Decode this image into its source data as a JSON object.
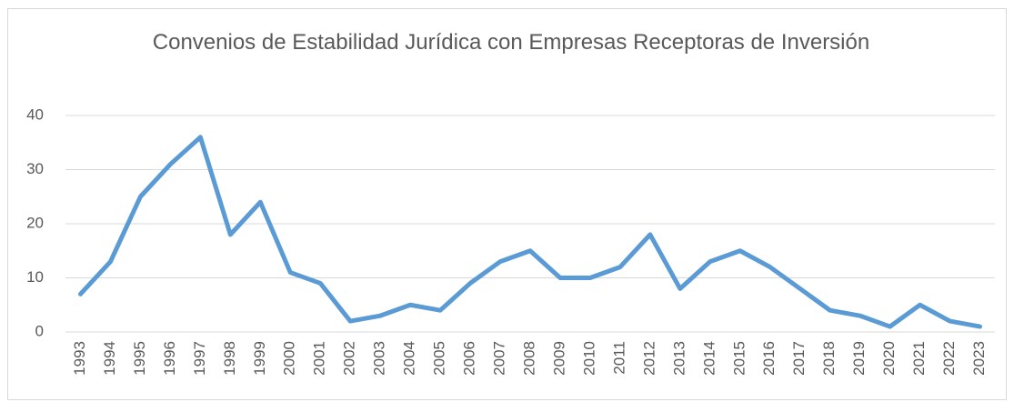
{
  "chart_data": {
    "type": "line",
    "title": "Convenios de Estabilidad Jurídica con Empresas Receptoras de Inversión",
    "categories": [
      "1993",
      "1994",
      "1995",
      "1996",
      "1997",
      "1998",
      "1999",
      "2000",
      "2001",
      "2002",
      "2003",
      "2004",
      "2005",
      "2006",
      "2007",
      "2008",
      "2009",
      "2010",
      "2011",
      "2012",
      "2013",
      "2014",
      "2015",
      "2016",
      "2017",
      "2018",
      "2019",
      "2020",
      "2021",
      "2022",
      "2023"
    ],
    "series": [
      {
        "name": "Convenios",
        "color": "#5b9bd5",
        "values": [
          7,
          13,
          25,
          31,
          36,
          18,
          24,
          11,
          9,
          2,
          3,
          5,
          4,
          9,
          13,
          15,
          10,
          10,
          12,
          18,
          8,
          13,
          15,
          12,
          8,
          4,
          3,
          1,
          5,
          2,
          1
        ]
      }
    ],
    "ylim": [
      0,
      40
    ],
    "yticks": [
      0,
      10,
      20,
      30,
      40
    ],
    "grid": true
  }
}
